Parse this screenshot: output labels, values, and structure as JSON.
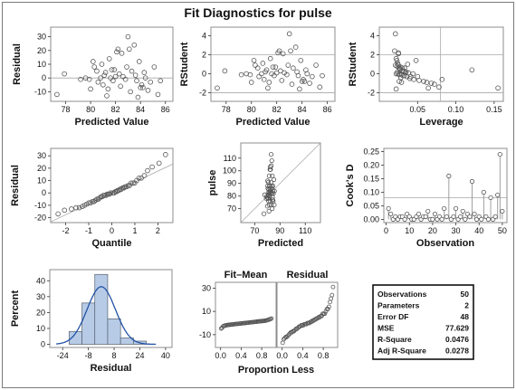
{
  "title": "Fit Diagnostics for pulse",
  "chart_data": [
    {
      "id": "res_pred",
      "type": "scatter",
      "xlabel": "Predicted Value",
      "ylabel": "Residual",
      "xlim": [
        76.8,
        86.6
      ],
      "ylim": [
        -17,
        37
      ],
      "xticks": [
        78,
        80,
        82,
        84,
        86
      ],
      "yticks": [
        -10,
        0,
        10,
        20,
        30
      ],
      "hlines": [
        0
      ],
      "x": [
        77.3,
        77.9,
        79.2,
        79.6,
        80.0,
        80.3,
        80.5,
        80.6,
        80.8,
        80.9,
        81.0,
        81.1,
        81.2,
        81.3,
        81.5,
        81.6,
        81.8,
        81.9,
        82.0,
        82.2,
        82.3,
        82.4,
        82.5,
        82.6,
        82.8,
        82.9,
        83.0,
        83.1,
        83.2,
        83.3,
        83.5,
        83.7,
        83.8,
        83.9,
        84.0,
        84.1,
        84.3,
        84.4,
        84.6,
        84.8,
        85.1,
        85.4,
        85.6,
        80.2,
        81.4,
        82.1,
        83.6,
        84.2,
        79.9,
        81.7
      ],
      "y": [
        -12,
        3,
        -1,
        0,
        -8,
        8,
        5,
        -3,
        0,
        10,
        -5,
        2,
        4,
        -13,
        14,
        0,
        -2,
        6,
        1,
        21,
        3,
        -6,
        18,
        1,
        -1,
        8,
        30,
        21,
        -10,
        5,
        24,
        -2,
        -14,
        12,
        -7,
        -5,
        4,
        0,
        -9,
        -3,
        8,
        -12,
        -2,
        12,
        -8,
        19,
        2,
        -7,
        -1,
        6
      ]
    },
    {
      "id": "rstud_pred",
      "type": "scatter",
      "xlabel": "Predicted Value",
      "ylabel": "RStudent",
      "xlim": [
        76.8,
        86.6
      ],
      "ylim": [
        -2.9,
        4.9
      ],
      "xticks": [
        78,
        80,
        82,
        84,
        86
      ],
      "yticks": [
        -2,
        0,
        2,
        4
      ],
      "hlines": [
        -2,
        2
      ],
      "x": [
        77.3,
        77.9,
        79.2,
        79.6,
        80.0,
        80.3,
        80.5,
        80.6,
        80.8,
        80.9,
        81.0,
        81.1,
        81.2,
        81.3,
        81.5,
        81.6,
        81.8,
        81.9,
        82.0,
        82.2,
        82.3,
        82.4,
        82.5,
        82.6,
        82.8,
        82.9,
        83.0,
        83.1,
        83.2,
        83.3,
        83.5,
        83.7,
        83.8,
        83.9,
        84.0,
        84.1,
        84.3,
        84.4,
        84.6,
        84.8,
        85.1,
        85.4,
        85.6,
        80.2,
        81.4,
        82.1,
        83.6,
        84.2,
        79.9,
        81.7
      ],
      "y": [
        -1.5,
        0.3,
        -0.1,
        0.0,
        -0.9,
        0.9,
        0.6,
        -0.3,
        0.0,
        1.1,
        -0.6,
        0.2,
        0.4,
        -1.5,
        1.6,
        0.0,
        -0.2,
        0.7,
        0.1,
        2.4,
        0.3,
        -0.7,
        2.1,
        0.1,
        -0.1,
        0.9,
        4.2,
        2.4,
        -1.1,
        0.6,
        2.8,
        -0.2,
        -1.6,
        1.4,
        -0.8,
        -0.6,
        0.4,
        0.0,
        -1.0,
        -0.3,
        0.9,
        -1.4,
        -0.2,
        1.4,
        -0.9,
        2.2,
        0.2,
        -0.8,
        -0.1,
        0.7
      ]
    },
    {
      "id": "rstud_lev",
      "type": "scatter",
      "xlabel": "Leverage",
      "ylabel": "RStudent",
      "xlim": [
        0.0,
        0.162
      ],
      "ylim": [
        -2.9,
        4.9
      ],
      "xticks": [
        0.05,
        0.1,
        0.15
      ],
      "xticklabels": [
        "0.05",
        "0.10",
        "0.15"
      ],
      "yticks": [
        -2,
        0,
        2,
        4
      ],
      "hlines": [
        -2,
        2
      ],
      "vlines": [
        0.08
      ],
      "x": [
        0.021,
        0.02,
        0.025,
        0.022,
        0.023,
        0.024,
        0.025,
        0.021,
        0.028,
        0.026,
        0.03,
        0.027,
        0.032,
        0.035,
        0.038,
        0.022,
        0.024,
        0.026,
        0.029,
        0.031,
        0.033,
        0.036,
        0.041,
        0.045,
        0.052,
        0.058,
        0.062,
        0.068,
        0.072,
        0.078,
        0.082,
        0.121,
        0.155,
        0.025,
        0.023,
        0.027,
        0.03,
        0.034,
        0.04,
        0.048,
        0.022,
        0.026,
        0.024,
        0.028,
        0.033,
        0.029,
        0.037,
        0.044,
        0.05,
        0.064
      ],
      "y": [
        4.2,
        2.4,
        2.1,
        1.6,
        1.4,
        1.1,
        0.9,
        0.9,
        0.7,
        0.6,
        0.6,
        0.4,
        0.3,
        0.2,
        0.1,
        0.0,
        0.0,
        -0.1,
        -0.1,
        -0.2,
        -0.2,
        -0.3,
        -0.3,
        -0.6,
        -0.7,
        -0.8,
        -0.9,
        -1.0,
        -1.1,
        -1.4,
        -0.6,
        0.4,
        -1.5,
        2.2,
        0.8,
        0.5,
        0.3,
        0.1,
        -0.5,
        1.4,
        -1.6,
        -0.8,
        0.2,
        -0.4,
        0.6,
        -0.9,
        1.0,
        0.0,
        -0.3,
        -1.5
      ]
    },
    {
      "id": "qq",
      "type": "scatter",
      "xlabel": "Quantile",
      "ylabel": "Residual",
      "xlim": [
        -2.65,
        2.65
      ],
      "ylim": [
        -24,
        36
      ],
      "xticks": [
        -2,
        -1,
        0,
        1,
        2
      ],
      "yticks": [
        -20,
        -10,
        0,
        10,
        20,
        30
      ],
      "refline": [
        [
          -2.65,
          -23.4
        ],
        [
          2.65,
          23.4
        ]
      ],
      "x": [
        -2.33,
        -2.05,
        -1.75,
        -1.55,
        -1.41,
        -1.28,
        -1.18,
        -1.08,
        -0.99,
        -0.92,
        -0.84,
        -0.77,
        -0.71,
        -0.64,
        -0.58,
        -0.52,
        -0.47,
        -0.41,
        -0.36,
        -0.31,
        -0.25,
        -0.2,
        -0.15,
        -0.1,
        -0.05,
        0.05,
        0.1,
        0.15,
        0.2,
        0.25,
        0.31,
        0.36,
        0.41,
        0.47,
        0.52,
        0.58,
        0.64,
        0.71,
        0.77,
        0.84,
        0.92,
        0.99,
        1.08,
        1.18,
        1.28,
        1.41,
        1.55,
        1.75,
        2.05,
        2.33
      ],
      "y": [
        -17,
        -14,
        -13,
        -12,
        -12,
        -11,
        -10,
        -9,
        -8,
        -8,
        -7,
        -7,
        -6,
        -5,
        -5,
        -4,
        -3,
        -3,
        -2,
        -2,
        -2,
        -1,
        -1,
        -1,
        0,
        0,
        0,
        1,
        1,
        2,
        2,
        3,
        3,
        4,
        4,
        5,
        5,
        6,
        6,
        8,
        8,
        8,
        10,
        12,
        12,
        14,
        18,
        21,
        24,
        31
      ]
    },
    {
      "id": "obs_pred",
      "type": "scatter",
      "xlabel": "Predicted",
      "ylabel": "pulse",
      "xlim": [
        59,
        122
      ],
      "ylim": [
        59,
        122
      ],
      "xticks": [
        70,
        90,
        110
      ],
      "yticks": [
        70,
        80,
        90,
        100,
        110
      ],
      "refline": [
        [
          59,
          59
        ],
        [
          122,
          122
        ]
      ],
      "x": [
        77.3,
        77.9,
        79.2,
        79.6,
        80.0,
        80.3,
        80.5,
        80.6,
        80.8,
        80.9,
        81.0,
        81.1,
        81.2,
        81.3,
        81.5,
        81.6,
        81.8,
        81.9,
        82.0,
        82.2,
        82.3,
        82.4,
        82.5,
        82.6,
        82.8,
        82.9,
        83.0,
        83.1,
        83.2,
        83.3,
        83.5,
        83.7,
        83.8,
        83.9,
        84.0,
        84.1,
        84.3,
        84.4,
        84.6,
        84.8,
        85.1,
        85.4,
        85.6,
        80.2,
        81.4,
        82.1,
        83.6,
        84.2,
        79.9,
        81.7
      ],
      "y": [
        66,
        81,
        78,
        80,
        72,
        88,
        86,
        78,
        81,
        91,
        76,
        83,
        85,
        68,
        96,
        82,
        80,
        88,
        83,
        103,
        85,
        76,
        101,
        84,
        82,
        91,
        113,
        104,
        73,
        88,
        108,
        82,
        70,
        96,
        77,
        79,
        88,
        84,
        76,
        82,
        93,
        73,
        84,
        92,
        73,
        101,
        86,
        77,
        79,
        88
      ]
    },
    {
      "id": "cooks",
      "type": "needle",
      "xlabel": "Observation",
      "ylabel": "Cook's D",
      "xlim": [
        -1,
        52
      ],
      "ylim": [
        -0.012,
        0.262
      ],
      "xticks": [
        0,
        10,
        20,
        30,
        40,
        50
      ],
      "yticks": [
        0.0,
        0.05,
        0.1,
        0.15,
        0.2,
        0.25
      ],
      "yticklabels": [
        "0.00",
        "0.05",
        "0.10",
        "0.15",
        "0.20",
        "0.25"
      ],
      "hlines": [
        0.08
      ],
      "x": [
        1,
        2,
        3,
        4,
        5,
        6,
        7,
        8,
        9,
        10,
        11,
        12,
        13,
        14,
        15,
        16,
        17,
        18,
        19,
        20,
        21,
        22,
        23,
        24,
        25,
        26,
        27,
        28,
        29,
        30,
        31,
        32,
        33,
        34,
        35,
        36,
        37,
        38,
        39,
        40,
        41,
        42,
        43,
        44,
        45,
        46,
        47,
        48,
        49,
        50
      ],
      "y": [
        0.04,
        0.02,
        0.0,
        0.01,
        0.0,
        0.01,
        0.01,
        0.0,
        0.02,
        0.01,
        0.0,
        0.0,
        0.01,
        0.02,
        0.0,
        0.01,
        0.01,
        0.03,
        0.0,
        0.0,
        0.02,
        0.0,
        0.01,
        0.0,
        0.04,
        0.01,
        0.16,
        0.0,
        0.01,
        0.04,
        0.0,
        0.01,
        0.03,
        0.0,
        0.02,
        0.01,
        0.14,
        0.02,
        0.0,
        0.01,
        0.0,
        0.1,
        0.01,
        0.0,
        0.08,
        0.0,
        0.01,
        0.09,
        0.24,
        0.03
      ]
    },
    {
      "id": "hist",
      "type": "bar",
      "xlabel": "Residual",
      "ylabel": "Percent",
      "xlim": [
        -32,
        44
      ],
      "ylim": [
        -2,
        47
      ],
      "xticks": [
        -24,
        -8,
        8,
        24,
        40
      ],
      "yticks": [
        0,
        10,
        20,
        30,
        40
      ],
      "bin_edges": [
        -20,
        -12,
        -4,
        4,
        12,
        20,
        28
      ],
      "values": [
        8,
        26,
        44,
        16,
        4,
        2
      ],
      "curve": {
        "mean": 0,
        "sd": 8.8,
        "n": 50,
        "binwidth": 8
      }
    },
    {
      "id": "fitmean",
      "type": "scatter",
      "title": "Fit–Mean",
      "xlabel": "",
      "xlim": [
        -0.1,
        1.08
      ],
      "ylim": [
        -21,
        35
      ],
      "xticks": [
        0.0,
        0.4,
        0.8
      ],
      "xticklabels": [
        "0.0",
        "0.4",
        "0.8"
      ],
      "yticks": [
        -10,
        10,
        30
      ],
      "x": [
        0.01,
        0.03,
        0.05,
        0.07,
        0.09,
        0.11,
        0.13,
        0.15,
        0.17,
        0.19,
        0.21,
        0.23,
        0.25,
        0.27,
        0.29,
        0.31,
        0.33,
        0.35,
        0.37,
        0.39,
        0.41,
        0.43,
        0.45,
        0.47,
        0.49,
        0.51,
        0.53,
        0.55,
        0.57,
        0.59,
        0.61,
        0.63,
        0.65,
        0.67,
        0.69,
        0.71,
        0.73,
        0.75,
        0.77,
        0.79,
        0.81,
        0.83,
        0.85,
        0.87,
        0.89,
        0.91,
        0.93,
        0.95,
        0.97,
        0.99
      ],
      "y": [
        -4.7,
        -4.1,
        -2.8,
        -2.4,
        -2.1,
        -2.0,
        -1.8,
        -1.6,
        -1.5,
        -1.4,
        -1.3,
        -1.2,
        -1.1,
        -1.0,
        -0.9,
        -0.8,
        -0.7,
        -0.6,
        -0.5,
        -0.4,
        -0.3,
        -0.2,
        -0.1,
        0.0,
        0.1,
        0.2,
        0.3,
        0.4,
        0.5,
        0.6,
        0.7,
        0.8,
        0.9,
        1.0,
        1.1,
        1.2,
        1.3,
        1.4,
        1.5,
        1.6,
        1.7,
        1.8,
        1.9,
        2.0,
        2.2,
        2.5,
        2.8,
        3.1,
        3.5,
        3.8
      ]
    },
    {
      "id": "residq",
      "type": "scatter",
      "title": "Residual",
      "xlabel": "",
      "xlim": [
        -0.1,
        1.08
      ],
      "ylim": [
        -21,
        35
      ],
      "xticks": [
        0.0,
        0.4,
        0.8
      ],
      "xticklabels": [
        "0.0",
        "0.4",
        "0.8"
      ],
      "yticks": [
        -10,
        10,
        30
      ],
      "x": [
        0.01,
        0.03,
        0.05,
        0.07,
        0.09,
        0.11,
        0.13,
        0.15,
        0.17,
        0.19,
        0.21,
        0.23,
        0.25,
        0.27,
        0.29,
        0.31,
        0.33,
        0.35,
        0.37,
        0.39,
        0.41,
        0.43,
        0.45,
        0.47,
        0.49,
        0.51,
        0.53,
        0.55,
        0.57,
        0.59,
        0.61,
        0.63,
        0.65,
        0.67,
        0.69,
        0.71,
        0.73,
        0.75,
        0.77,
        0.79,
        0.81,
        0.83,
        0.85,
        0.87,
        0.89,
        0.91,
        0.93,
        0.95,
        0.97,
        0.99
      ],
      "y": [
        -17,
        -14,
        -13,
        -12,
        -12,
        -11,
        -10,
        -9,
        -8,
        -8,
        -7,
        -7,
        -6,
        -5,
        -5,
        -4,
        -3,
        -3,
        -2,
        -2,
        -2,
        -1,
        -1,
        -1,
        0,
        0,
        0,
        1,
        1,
        2,
        2,
        3,
        3,
        4,
        4,
        5,
        5,
        6,
        6,
        8,
        8,
        8,
        10,
        12,
        12,
        14,
        18,
        21,
        24,
        31
      ]
    }
  ],
  "fit_panels_xlabel": "Proportion Less",
  "stats": [
    {
      "label": "Observations",
      "value": "50"
    },
    {
      "label": "Parameters",
      "value": "2"
    },
    {
      "label": "Error DF",
      "value": "48"
    },
    {
      "label": "MSE",
      "value": "77.629"
    },
    {
      "label": "R-Square",
      "value": "0.0476"
    },
    {
      "label": "Adj R-Square",
      "value": "0.0278"
    }
  ],
  "colors": {
    "marker": "#555555",
    "ref": "#a8a8a8",
    "bar_fill": "#b7cbe6",
    "bar_stroke": "#55606e",
    "curve": "#2352a6"
  }
}
